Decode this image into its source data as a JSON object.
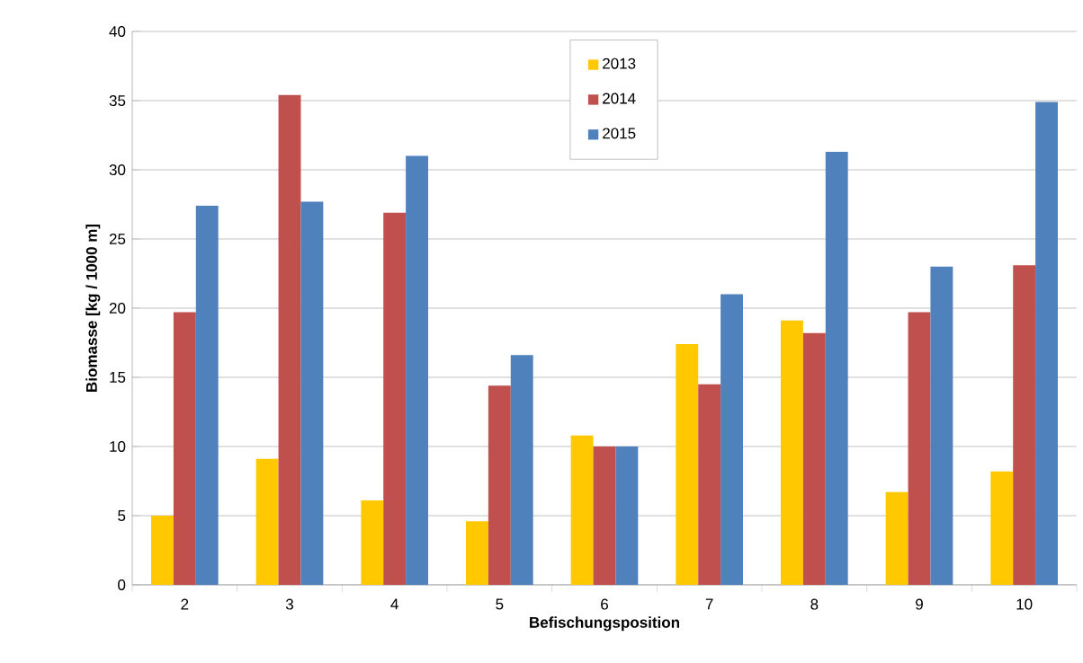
{
  "chart_data": {
    "type": "bar",
    "xlabel": "Befischungsposition",
    "ylabel": "Biomasse [kg / 1000 m]",
    "categories": [
      "2",
      "3",
      "4",
      "5",
      "6",
      "7",
      "8",
      "9",
      "10"
    ],
    "series": [
      {
        "name": "2013",
        "color": "#ffc800",
        "values": [
          5.0,
          9.1,
          6.1,
          4.6,
          10.8,
          17.4,
          19.1,
          6.7,
          8.2
        ]
      },
      {
        "name": "2014",
        "color": "#c0504d",
        "values": [
          19.7,
          35.4,
          26.9,
          14.4,
          10.0,
          14.5,
          18.2,
          19.7,
          23.1
        ]
      },
      {
        "name": "2015",
        "color": "#4f81bd",
        "values": [
          27.4,
          27.7,
          31.0,
          16.6,
          10.0,
          21.0,
          31.3,
          23.0,
          34.9
        ]
      }
    ],
    "ylim": [
      0,
      40
    ],
    "yticks": [
      0,
      5,
      10,
      15,
      20,
      25,
      30,
      35,
      40
    ],
    "grid": "y",
    "legend": "top"
  }
}
